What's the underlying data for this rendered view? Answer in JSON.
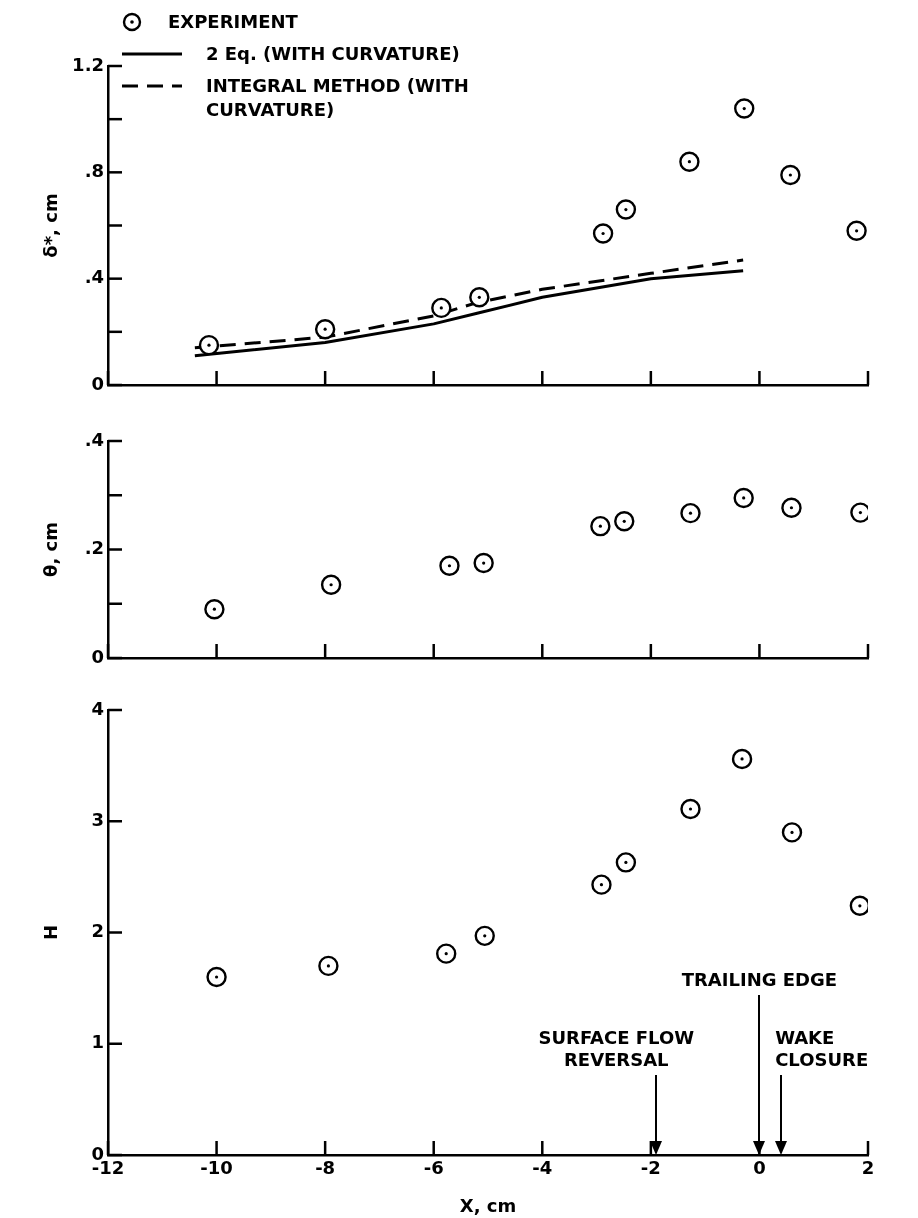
{
  "chart_data": [
    {
      "type": "scatter",
      "ylabel": "δ*, cm",
      "xlim": [
        -12,
        2
      ],
      "xticks": [
        -12,
        -10,
        -8,
        -6,
        -4,
        -2,
        0,
        2
      ],
      "ylim": [
        0,
        1.2
      ],
      "yticks": [
        0,
        {
          "value": 0.2,
          "label": null
        },
        {
          "value": 0.4,
          "label": ".4"
        },
        {
          "value": 0.6,
          "label": null
        },
        {
          "value": 0.8,
          "label": ".8"
        },
        {
          "value": 1.0,
          "label": null
        },
        {
          "value": 1.2,
          "label": "1.2"
        }
      ],
      "tick_labels": "y",
      "legend": "top left",
      "series": [
        {
          "name": "EXPERIMENT",
          "marker": "circle",
          "color": "#000000",
          "x": [
            -10.14,
            -8.0,
            -5.86,
            -5.16,
            -2.88,
            -2.46,
            -1.29,
            -0.28,
            0.57,
            1.79
          ],
          "values": [
            0.15,
            0.21,
            0.29,
            0.33,
            0.57,
            0.66,
            0.84,
            1.04,
            0.79,
            0.58
          ]
        },
        {
          "name": "2 Eq. (WITH CURVATURE)",
          "type": "line",
          "marker": "none",
          "line_style": "solid",
          "color": "#000000",
          "x": [
            -10.4,
            -8,
            -6,
            -5.2,
            -4,
            -2,
            -0.3
          ],
          "values": [
            0.11,
            0.16,
            0.23,
            0.27,
            0.33,
            0.4,
            0.43
          ]
        },
        {
          "name": "INTEGRAL METHOD (WITH CURVATURE)",
          "type": "line",
          "marker": "none",
          "line_style": "dashed",
          "color": "#000000",
          "x": [
            -10.4,
            -8,
            -6,
            -5.2,
            -4,
            -2,
            -0.3
          ],
          "values": [
            0.14,
            0.18,
            0.26,
            0.31,
            0.36,
            0.42,
            0.47
          ]
        }
      ]
    },
    {
      "type": "scatter",
      "ylabel": "θ, cm",
      "xlim": [
        -12,
        2
      ],
      "xticks": [
        -12,
        -10,
        -8,
        -6,
        -4,
        -2,
        0,
        2
      ],
      "ylim": [
        0,
        0.4
      ],
      "yticks": [
        0,
        {
          "value": 0.1,
          "label": null
        },
        {
          "value": 0.2,
          "label": ".2"
        },
        {
          "value": 0.3,
          "label": null
        },
        {
          "value": 0.4,
          "label": ".4"
        }
      ],
      "tick_labels": "y",
      "series": [
        {
          "marker": "circle",
          "color": "#000000",
          "x": [
            -10.04,
            -7.89,
            -5.71,
            -5.08,
            -2.93,
            -2.49,
            -1.27,
            -0.29,
            0.59,
            1.86
          ],
          "values": [
            0.09,
            0.135,
            0.17,
            0.175,
            0.243,
            0.252,
            0.267,
            0.295,
            0.277,
            0.268
          ]
        }
      ]
    },
    {
      "type": "scatter",
      "ylabel": "H",
      "xlabel": "X, cm",
      "xlim": [
        -12,
        2
      ],
      "xticks": [
        -12,
        -10,
        -8,
        -6,
        -4,
        -2,
        0,
        2
      ],
      "ylim": [
        0,
        4
      ],
      "yticks": [
        0,
        1,
        2,
        3,
        4
      ],
      "series": [
        {
          "marker": "circle",
          "color": "#000000",
          "x": [
            -10.0,
            -7.94,
            -5.77,
            -5.06,
            -2.91,
            -2.46,
            -1.27,
            -0.32,
            0.6,
            1.85
          ],
          "values": [
            1.6,
            1.7,
            1.81,
            1.97,
            2.43,
            2.63,
            3.11,
            3.56,
            2.9,
            2.24
          ]
        }
      ],
      "ref_lines": [
        {
          "axis": "x",
          "value": -1.9,
          "label": "SURFACE FLOW REVERSAL"
        },
        {
          "axis": "x",
          "value": 0,
          "label": "TRAILING EDGE"
        },
        {
          "axis": "x",
          "value": 0.4,
          "label": "WAKE CLOSURE"
        }
      ]
    }
  ]
}
